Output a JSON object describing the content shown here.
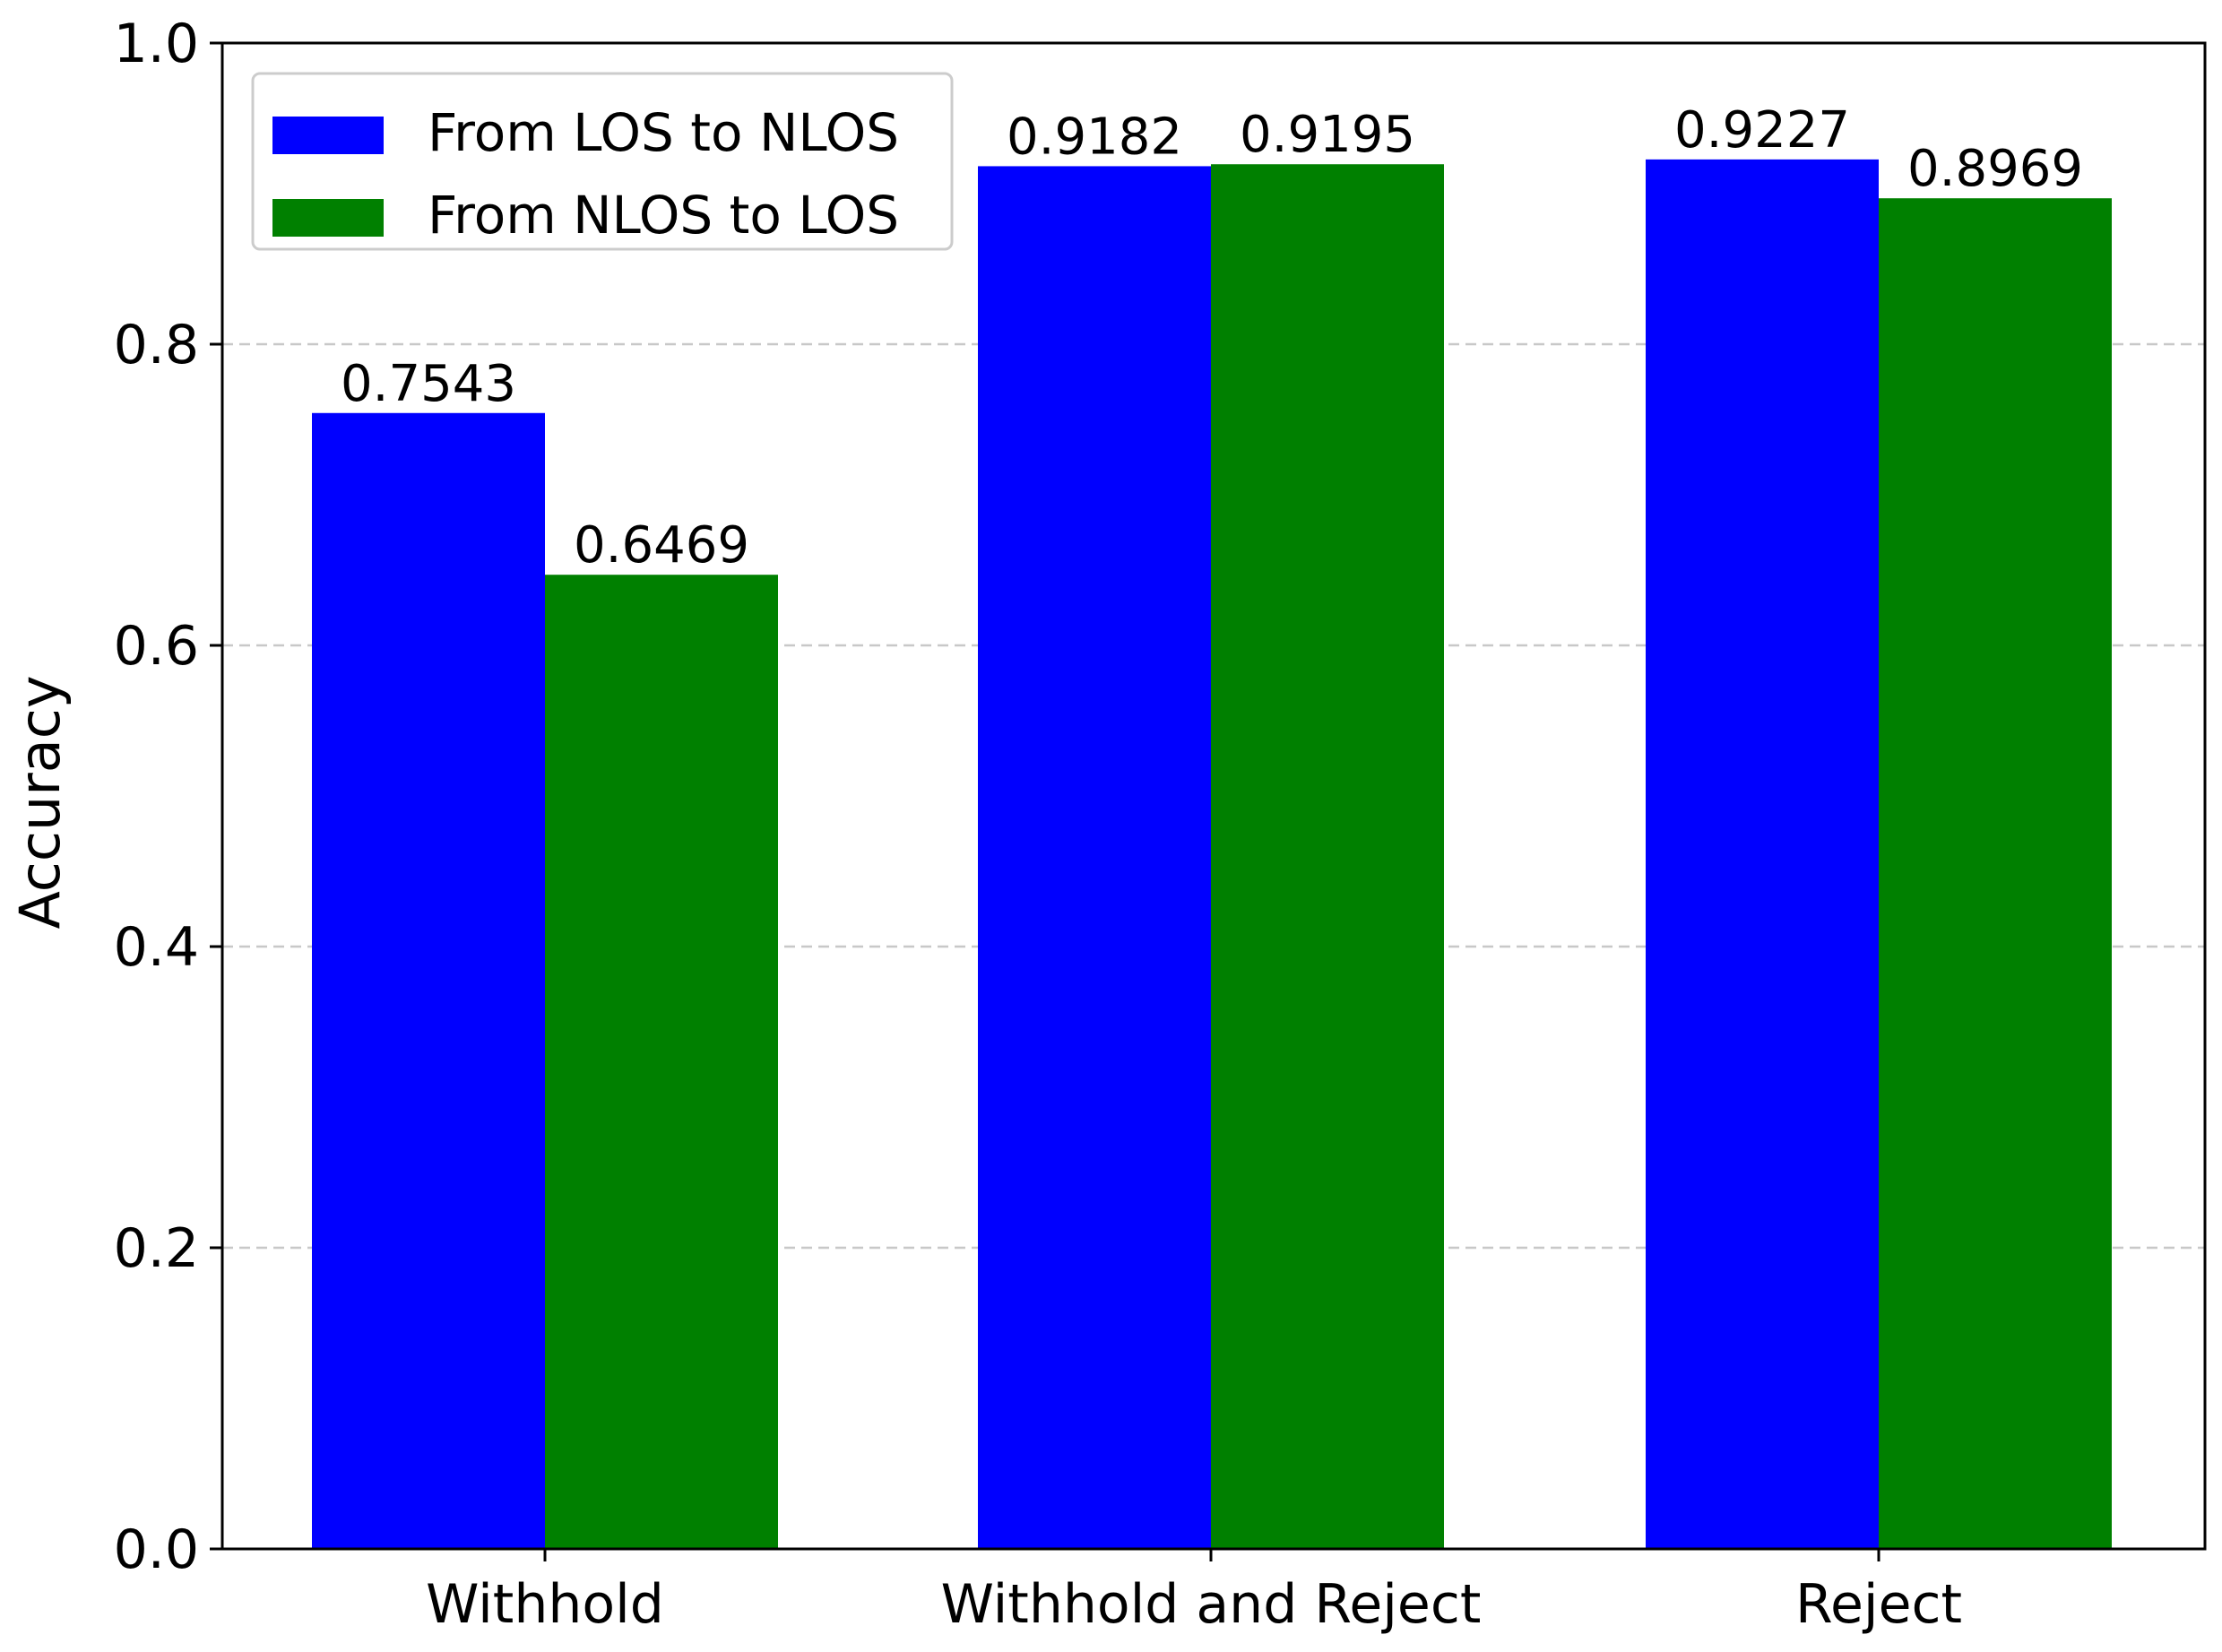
{
  "chart_data": {
    "type": "bar",
    "title": "",
    "xlabel": "",
    "ylabel": "Accuracy",
    "categories": [
      "Withhold",
      "Withhold and Reject",
      "Reject"
    ],
    "series": [
      {
        "name": "From LOS to NLOS",
        "color": "#0000ff",
        "values": [
          0.7543,
          0.9182,
          0.9227
        ],
        "value_labels": [
          "0.7543",
          "0.9182",
          "0.9227"
        ]
      },
      {
        "name": "From NLOS to LOS",
        "color": "#008000",
        "values": [
          0.6469,
          0.9195,
          0.8969
        ],
        "value_labels": [
          "0.6469",
          "0.9195",
          "0.8969"
        ]
      }
    ],
    "ylim": [
      0.0,
      1.0
    ],
    "yticks": [
      0.0,
      0.2,
      0.4,
      0.6,
      0.8,
      1.0
    ],
    "ytick_labels": [
      "0.0",
      "0.2",
      "0.4",
      "0.6",
      "0.8",
      "1.0"
    ],
    "grid": "horizontal dashed",
    "grid_color": "#c8c8c8",
    "legend_position": "upper-left"
  }
}
